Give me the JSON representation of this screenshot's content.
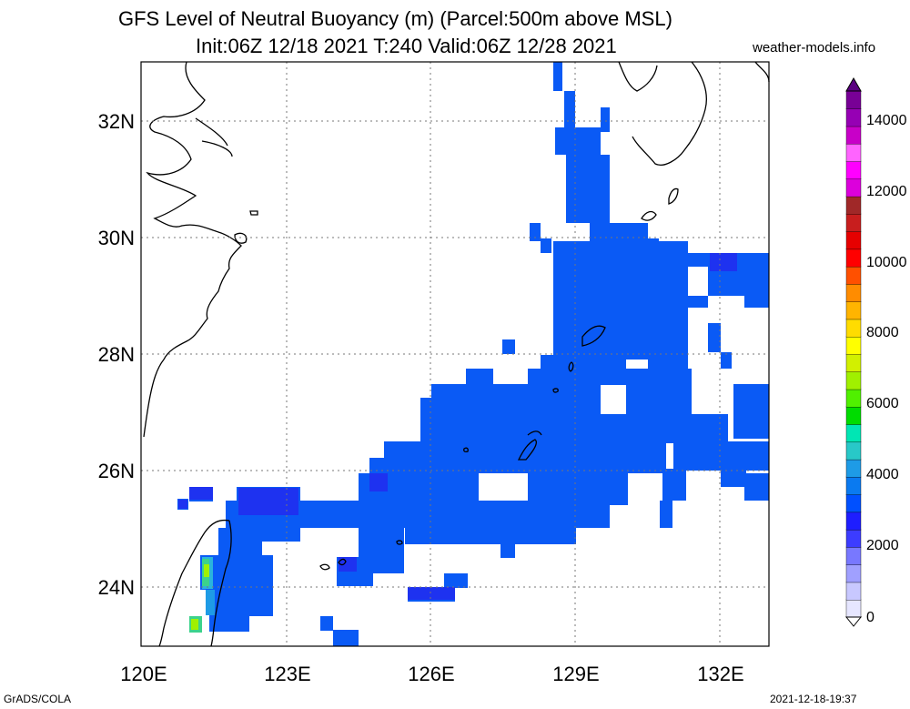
{
  "title_line1": "GFS Level of Neutral Buoyancy (m) (Parcel:500m above MSL)",
  "title_line2": "Init:06Z 12/18 2021 T:240 Valid:06Z 12/28 2021",
  "credit": "weather-models.info",
  "footer_left": "GrADS/COLA",
  "footer_right": "2021-12-18-19:37",
  "map": {
    "lon_labels": [
      "120E",
      "123E",
      "126E",
      "129E",
      "132E"
    ],
    "lat_labels": [
      "32N",
      "30N",
      "28N",
      "26N",
      "24N"
    ],
    "lon_range": [
      120,
      133
    ],
    "lat_range": [
      23,
      33
    ]
  },
  "colorbar": {
    "labels": [
      "14000",
      "12000",
      "10000",
      "8000",
      "6000",
      "4000",
      "2000",
      "0"
    ],
    "colors": [
      "#e6e6ff",
      "#c8c8ff",
      "#a0a0ff",
      "#7878ff",
      "#3c3cff",
      "#1e1eff",
      "#0050ff",
      "#0a7af0",
      "#1e9be6",
      "#28c8c8",
      "#00e6b4",
      "#00dc00",
      "#50f000",
      "#a0f000",
      "#d2f000",
      "#ffff00",
      "#ffdc00",
      "#ffb400",
      "#ff8c00",
      "#ff5000",
      "#ff0000",
      "#e60000",
      "#c81e1e",
      "#a02828",
      "#dc00dc",
      "#ff00ff",
      "#ff64ff",
      "#c800c8",
      "#9600b4",
      "#780096"
    ]
  },
  "colors": {
    "buoyancy_blue": "#0a5af5",
    "deep_blue": "#1e32f0"
  }
}
